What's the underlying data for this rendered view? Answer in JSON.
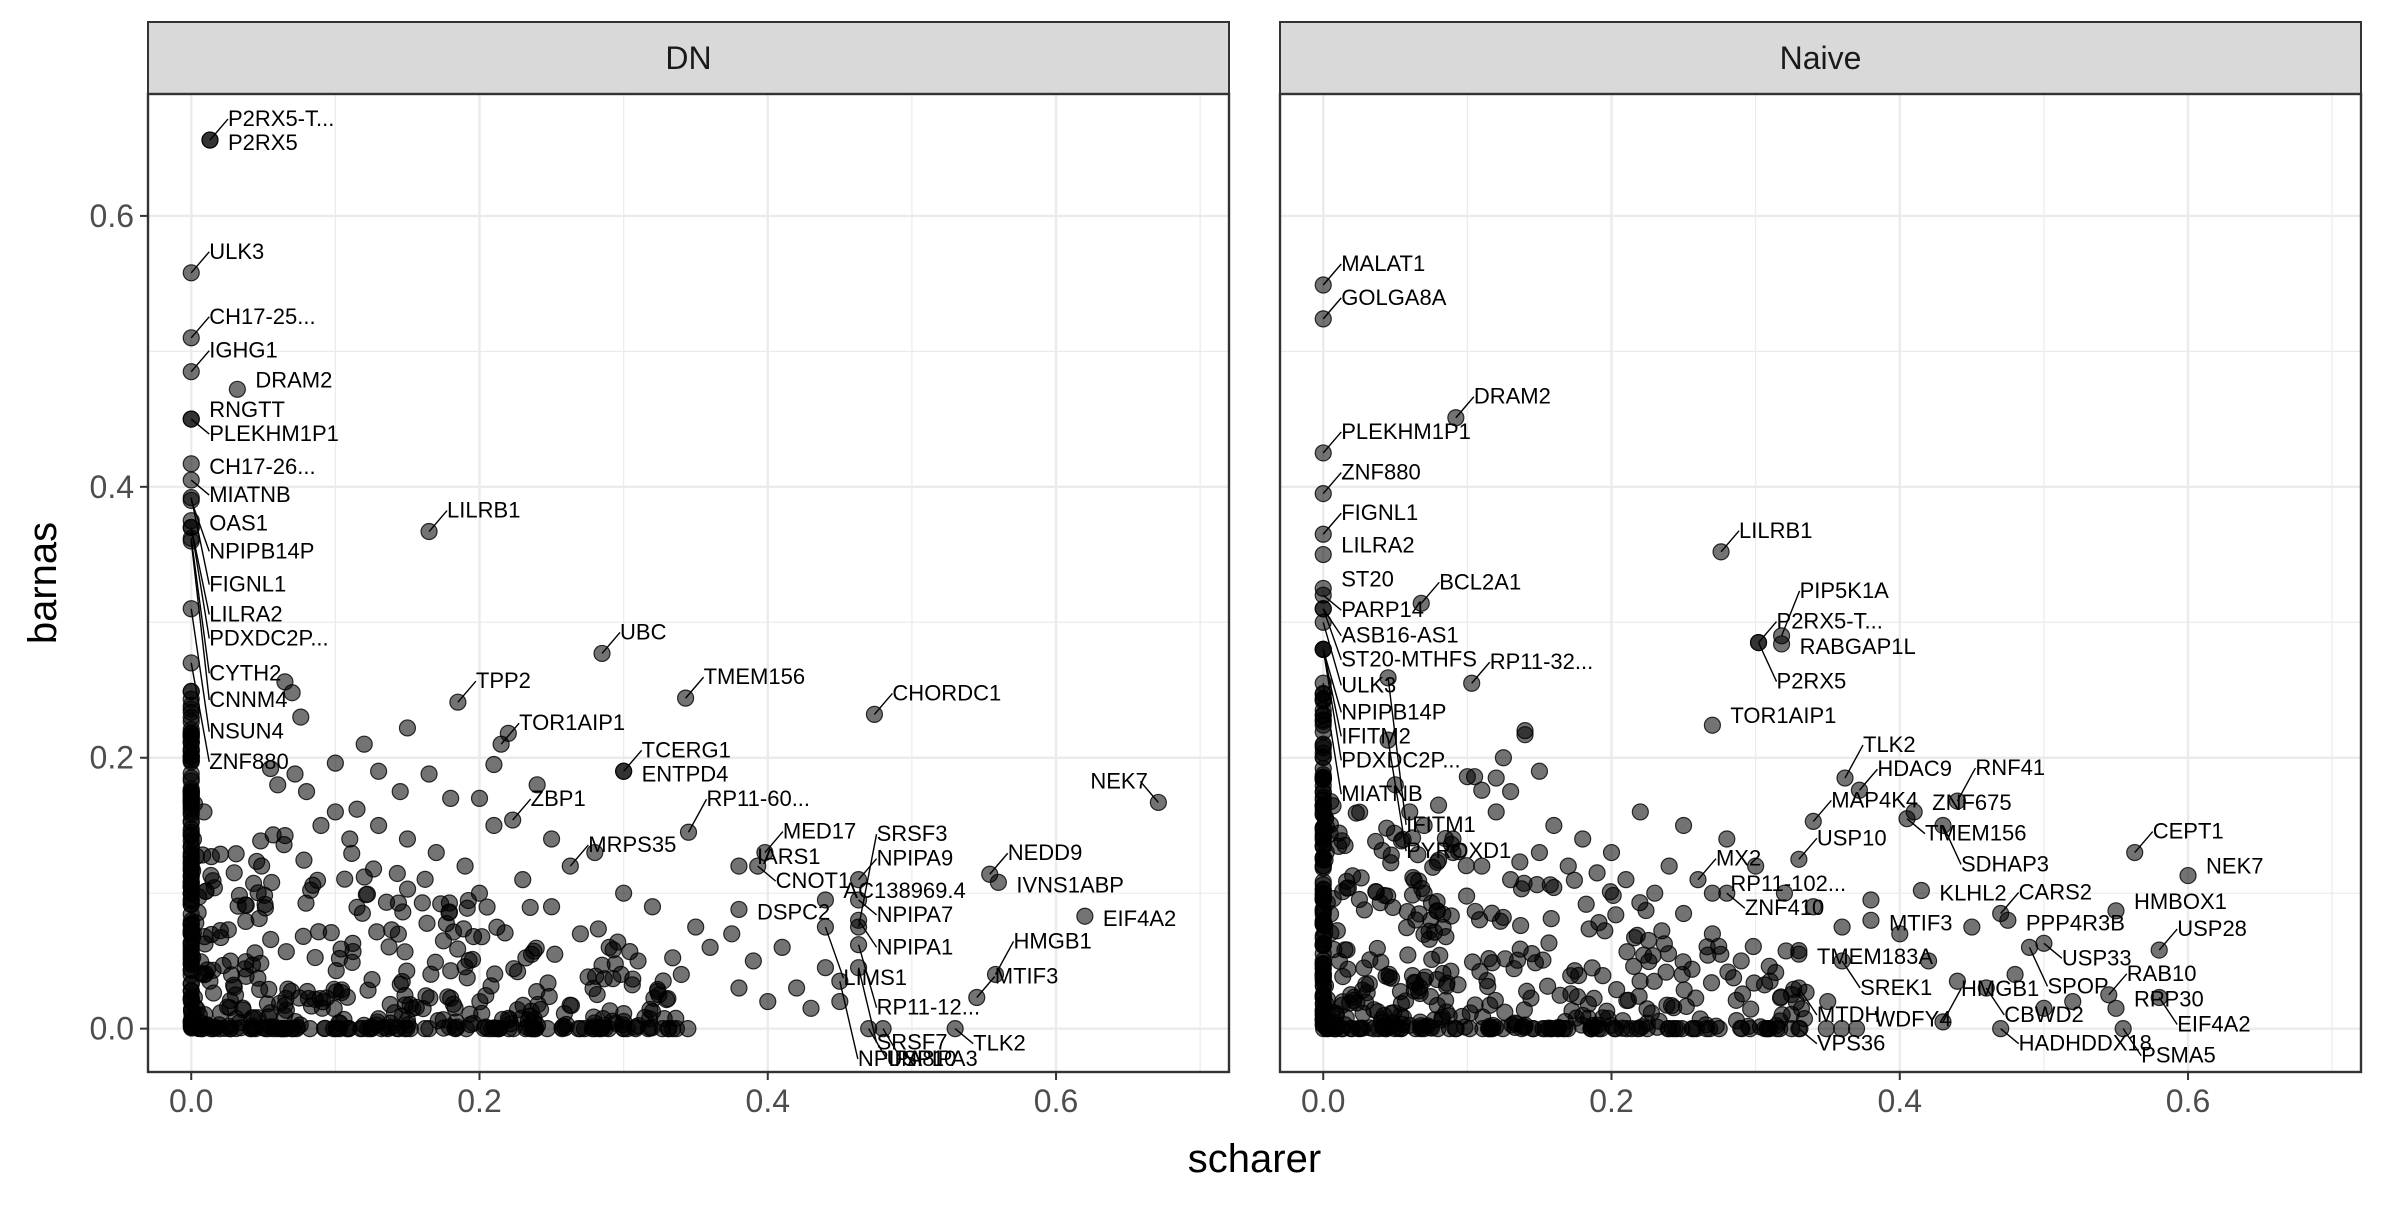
{
  "chart_data": {
    "type": "scatter",
    "xlabel": "scharer",
    "ylabel": "barnas",
    "xlim": [
      -0.03,
      0.72
    ],
    "ylim": [
      -0.032,
      0.69
    ],
    "x_ticks": [
      0.0,
      0.2,
      0.4,
      0.6
    ],
    "x_tick_labels": [
      "0.0",
      "0.2",
      "0.4",
      "0.6"
    ],
    "y_ticks": [
      0.0,
      0.2,
      0.4,
      0.6
    ],
    "y_tick_labels": [
      "0.0",
      "0.2",
      "0.4",
      "0.6"
    ],
    "grid": true,
    "point_color": "#000000",
    "point_opacity": 0.55,
    "panel_strip_color": "#d9d9d9",
    "panel_border_color": "#333333",
    "grid_color": "#ebebeb",
    "panels": [
      {
        "strip": "DN",
        "labeled_points": [
          {
            "label": "P2RX5-T...",
            "x": 0.013,
            "y": 0.656
          },
          {
            "label": "P2RX5",
            "x": 0.013,
            "y": 0.656
          },
          {
            "label": "ULK3",
            "x": 0.0,
            "y": 0.558
          },
          {
            "label": "CH17-25...",
            "x": 0.0,
            "y": 0.51
          },
          {
            "label": "IGHG1",
            "x": 0.0,
            "y": 0.485
          },
          {
            "label": "DRAM2",
            "x": 0.032,
            "y": 0.472
          },
          {
            "label": "RNGTT",
            "x": 0.0,
            "y": 0.45
          },
          {
            "label": "PLEKHM1P1",
            "x": 0.0,
            "y": 0.45
          },
          {
            "label": "CH17-26...",
            "x": 0.0,
            "y": 0.417
          },
          {
            "label": "MIATNB",
            "x": 0.0,
            "y": 0.405
          },
          {
            "label": "OAS1",
            "x": 0.0,
            "y": 0.375
          },
          {
            "label": "NPIPB14P",
            "x": 0.0,
            "y": 0.39
          },
          {
            "label": "FIGNL1",
            "x": 0.0,
            "y": 0.392
          },
          {
            "label": "LILRB1",
            "x": 0.165,
            "y": 0.367
          },
          {
            "label": "LILRA2",
            "x": 0.0,
            "y": 0.37
          },
          {
            "label": "PDXDC2P...",
            "x": 0.0,
            "y": 0.37
          },
          {
            "label": "CYTH2",
            "x": 0.0,
            "y": 0.362
          },
          {
            "label": "CNNM4",
            "x": 0.0,
            "y": 0.36
          },
          {
            "label": "NSUN4",
            "x": 0.0,
            "y": 0.31
          },
          {
            "label": "ZNF880",
            "x": 0.0,
            "y": 0.27
          },
          {
            "label": "UBC",
            "x": 0.285,
            "y": 0.277
          },
          {
            "label": "TPP2",
            "x": 0.185,
            "y": 0.241
          },
          {
            "label": "TMEM156",
            "x": 0.343,
            "y": 0.244
          },
          {
            "label": "TOR1AIP1",
            "x": 0.215,
            "y": 0.21
          },
          {
            "label": "TCERG1",
            "x": 0.3,
            "y": 0.19
          },
          {
            "label": "ENTPD4",
            "x": 0.3,
            "y": 0.19
          },
          {
            "label": "CHORDC1",
            "x": 0.474,
            "y": 0.232
          },
          {
            "label": "MED17",
            "x": 0.398,
            "y": 0.13
          },
          {
            "label": "RP11-60...",
            "x": 0.345,
            "y": 0.145
          },
          {
            "label": "ZBP1",
            "x": 0.223,
            "y": 0.154
          },
          {
            "label": "NPIPA9",
            "x": 0.463,
            "y": 0.11
          },
          {
            "label": "NEDD9",
            "x": 0.554,
            "y": 0.114
          },
          {
            "label": "NEK7",
            "x": 0.671,
            "y": 0.167
          },
          {
            "label": "IARS1",
            "x": 0.38,
            "y": 0.12
          },
          {
            "label": "CNOT1",
            "x": 0.393,
            "y": 0.12
          },
          {
            "label": "MRPS35",
            "x": 0.263,
            "y": 0.12
          },
          {
            "label": "IVNS1ABP",
            "x": 0.56,
            "y": 0.108
          },
          {
            "label": "AC138969.4",
            "x": 0.44,
            "y": 0.095
          },
          {
            "label": "NPIPA7",
            "x": 0.463,
            "y": 0.095
          },
          {
            "label": "DSPC2",
            "x": 0.38,
            "y": 0.088
          },
          {
            "label": "NPIPA1",
            "x": 0.463,
            "y": 0.08
          },
          {
            "label": "EIF4A2",
            "x": 0.62,
            "y": 0.083
          },
          {
            "label": "LIMS1",
            "x": 0.44,
            "y": 0.075
          },
          {
            "label": "SRSF3",
            "x": 0.463,
            "y": 0.075
          },
          {
            "label": "MTIF3",
            "x": 0.545,
            "y": 0.023
          },
          {
            "label": "HMGB1",
            "x": 0.558,
            "y": 0.04
          },
          {
            "label": "RP11-12...",
            "x": 0.463,
            "y": 0.062
          },
          {
            "label": "SRSF7",
            "x": 0.463,
            "y": 0.045
          },
          {
            "label": "NPIPA8",
            "x": 0.45,
            "y": 0.035
          },
          {
            "label": "TLK2",
            "x": 0.53,
            "y": 0.0
          },
          {
            "label": "USP10",
            "x": 0.47,
            "y": 0.0
          },
          {
            "label": "NPIPA3",
            "x": 0.48,
            "y": 0.0
          }
        ],
        "other_points": [
          [
            0.055,
            0.192
          ],
          [
            0.072,
            0.188
          ],
          [
            0.06,
            0.18
          ],
          [
            0.08,
            0.175
          ],
          [
            0.1,
            0.16
          ],
          [
            0.115,
            0.162
          ],
          [
            0.12,
            0.21
          ],
          [
            0.13,
            0.19
          ],
          [
            0.145,
            0.175
          ],
          [
            0.165,
            0.188
          ],
          [
            0.18,
            0.17
          ],
          [
            0.2,
            0.17
          ],
          [
            0.21,
            0.15
          ],
          [
            0.24,
            0.18
          ],
          [
            0.25,
            0.14
          ],
          [
            0.28,
            0.13
          ],
          [
            0.3,
            0.1
          ],
          [
            0.32,
            0.09
          ],
          [
            0.35,
            0.075
          ],
          [
            0.36,
            0.06
          ],
          [
            0.375,
            0.07
          ],
          [
            0.39,
            0.05
          ],
          [
            0.41,
            0.06
          ],
          [
            0.42,
            0.03
          ],
          [
            0.43,
            0.015
          ],
          [
            0.44,
            0.045
          ],
          [
            0.45,
            0.02
          ],
          [
            0.4,
            0.02
          ],
          [
            0.38,
            0.03
          ],
          [
            0.34,
            0.04
          ],
          [
            0.31,
            0.05
          ],
          [
            0.29,
            0.06
          ],
          [
            0.27,
            0.07
          ],
          [
            0.25,
            0.09
          ],
          [
            0.23,
            0.11
          ],
          [
            0.19,
            0.12
          ],
          [
            0.17,
            0.13
          ],
          [
            0.15,
            0.14
          ],
          [
            0.13,
            0.15
          ],
          [
            0.11,
            0.14
          ],
          [
            0.09,
            0.15
          ],
          [
            0.065,
            0.256
          ],
          [
            0.07,
            0.248
          ],
          [
            0.076,
            0.23
          ],
          [
            0.1,
            0.196
          ],
          [
            0.15,
            0.222
          ],
          [
            0.22,
            0.218
          ],
          [
            0.21,
            0.195
          ]
        ]
      },
      {
        "strip": "Naive",
        "labeled_points": [
          {
            "label": "MALAT1",
            "x": 0.0,
            "y": 0.549
          },
          {
            "label": "GOLGA8A",
            "x": 0.0,
            "y": 0.524
          },
          {
            "label": "DRAM2",
            "x": 0.092,
            "y": 0.451
          },
          {
            "label": "PLEKHM1P1",
            "x": 0.0,
            "y": 0.425
          },
          {
            "label": "ZNF880",
            "x": 0.0,
            "y": 0.395
          },
          {
            "label": "FIGNL1",
            "x": 0.0,
            "y": 0.365
          },
          {
            "label": "LILRA2",
            "x": 0.0,
            "y": 0.35
          },
          {
            "label": "LILRB1",
            "x": 0.276,
            "y": 0.352
          },
          {
            "label": "ST20",
            "x": 0.0,
            "y": 0.325
          },
          {
            "label": "PARP14",
            "x": 0.0,
            "y": 0.32
          },
          {
            "label": "BCL2A1",
            "x": 0.068,
            "y": 0.314
          },
          {
            "label": "P2RX5-T...",
            "x": 0.302,
            "y": 0.285
          },
          {
            "label": "PIP5K1A",
            "x": 0.318,
            "y": 0.29
          },
          {
            "label": "ASB16-AS1",
            "x": 0.0,
            "y": 0.31
          },
          {
            "label": "ST20-MTHFS",
            "x": 0.0,
            "y": 0.31
          },
          {
            "label": "RABGAP1L",
            "x": 0.318,
            "y": 0.284
          },
          {
            "label": "ULK3",
            "x": 0.0,
            "y": 0.3
          },
          {
            "label": "P2RX5",
            "x": 0.302,
            "y": 0.285
          },
          {
            "label": "NPIPB14P",
            "x": 0.0,
            "y": 0.28
          },
          {
            "label": "IFITM2",
            "x": 0.0,
            "y": 0.28
          },
          {
            "label": "PDXDC2P...",
            "x": 0.0,
            "y": 0.28
          },
          {
            "label": "MIATNB",
            "x": 0.0,
            "y": 0.255
          },
          {
            "label": "IFITM1",
            "x": 0.045,
            "y": 0.259
          },
          {
            "label": "TOR1AIP1",
            "x": 0.27,
            "y": 0.224
          },
          {
            "label": "PYROXD1",
            "x": 0.045,
            "y": 0.213
          },
          {
            "label": "RP11-32...",
            "x": 0.103,
            "y": 0.255
          },
          {
            "label": "HDAC9",
            "x": 0.372,
            "y": 0.176
          },
          {
            "label": "TLK2",
            "x": 0.362,
            "y": 0.185
          },
          {
            "label": "ZNF675",
            "x": 0.41,
            "y": 0.16
          },
          {
            "label": "RNF41",
            "x": 0.44,
            "y": 0.168
          },
          {
            "label": "MAP4K4",
            "x": 0.34,
            "y": 0.153
          },
          {
            "label": "TMEM156",
            "x": 0.405,
            "y": 0.155
          },
          {
            "label": "SDHAP3",
            "x": 0.43,
            "y": 0.15
          },
          {
            "label": "CEPT1",
            "x": 0.563,
            "y": 0.13
          },
          {
            "label": "NEK7",
            "x": 0.6,
            "y": 0.113
          },
          {
            "label": "MX2",
            "x": 0.26,
            "y": 0.11
          },
          {
            "label": "USP10",
            "x": 0.33,
            "y": 0.125
          },
          {
            "label": "KLHL2",
            "x": 0.415,
            "y": 0.102
          },
          {
            "label": "CARS2",
            "x": 0.47,
            "y": 0.085
          },
          {
            "label": "RP11-102...",
            "x": 0.27,
            "y": 0.1
          },
          {
            "label": "ZNF410",
            "x": 0.28,
            "y": 0.1
          },
          {
            "label": "MTIF3",
            "x": 0.38,
            "y": 0.08
          },
          {
            "label": "PPP4R3B",
            "x": 0.475,
            "y": 0.08
          },
          {
            "label": "USP33",
            "x": 0.5,
            "y": 0.063
          },
          {
            "label": "HMBOX1",
            "x": 0.55,
            "y": 0.087
          },
          {
            "label": "USP28",
            "x": 0.58,
            "y": 0.058
          },
          {
            "label": "RAB10",
            "x": 0.545,
            "y": 0.025
          },
          {
            "label": "SPOP",
            "x": 0.49,
            "y": 0.06
          },
          {
            "label": "TMEM183A",
            "x": 0.33,
            "y": 0.055
          },
          {
            "label": "SREK1",
            "x": 0.36,
            "y": 0.05
          },
          {
            "label": "MTDH",
            "x": 0.33,
            "y": 0.03
          },
          {
            "label": "RPP30",
            "x": 0.55,
            "y": 0.015
          },
          {
            "label": "EIF4A2",
            "x": 0.58,
            "y": 0.023
          },
          {
            "label": "CBWD2",
            "x": 0.46,
            "y": 0.03
          },
          {
            "label": "VPS36",
            "x": 0.33,
            "y": 0.0
          },
          {
            "label": "WDFY4",
            "x": 0.37,
            "y": 0.0
          },
          {
            "label": "HMGB1",
            "x": 0.43,
            "y": 0.005
          },
          {
            "label": "HADHDDX18",
            "x": 0.47,
            "y": 0.0
          },
          {
            "label": "PSMA5",
            "x": 0.555,
            "y": 0.0
          }
        ],
        "other_points": [
          [
            0.05,
            0.18
          ],
          [
            0.06,
            0.16
          ],
          [
            0.07,
            0.15
          ],
          [
            0.08,
            0.165
          ],
          [
            0.09,
            0.14
          ],
          [
            0.1,
            0.186
          ],
          [
            0.11,
            0.176
          ],
          [
            0.12,
            0.16
          ],
          [
            0.125,
            0.2
          ],
          [
            0.14,
            0.22
          ],
          [
            0.15,
            0.19
          ],
          [
            0.16,
            0.15
          ],
          [
            0.18,
            0.14
          ],
          [
            0.2,
            0.13
          ],
          [
            0.22,
            0.16
          ],
          [
            0.24,
            0.12
          ],
          [
            0.25,
            0.15
          ],
          [
            0.28,
            0.14
          ],
          [
            0.3,
            0.12
          ],
          [
            0.32,
            0.1
          ],
          [
            0.34,
            0.09
          ],
          [
            0.36,
            0.075
          ],
          [
            0.38,
            0.095
          ],
          [
            0.4,
            0.07
          ],
          [
            0.42,
            0.05
          ],
          [
            0.44,
            0.035
          ],
          [
            0.45,
            0.075
          ],
          [
            0.48,
            0.04
          ],
          [
            0.5,
            0.015
          ],
          [
            0.52,
            0.02
          ],
          [
            0.35,
            0.02
          ],
          [
            0.31,
            0.035
          ],
          [
            0.29,
            0.05
          ],
          [
            0.27,
            0.07
          ],
          [
            0.25,
            0.085
          ],
          [
            0.23,
            0.1
          ],
          [
            0.21,
            0.11
          ],
          [
            0.19,
            0.115
          ],
          [
            0.17,
            0.12
          ],
          [
            0.15,
            0.13
          ],
          [
            0.13,
            0.11
          ],
          [
            0.11,
            0.12
          ],
          [
            0.09,
            0.13
          ],
          [
            0.07,
            0.1
          ],
          [
            0.105,
            0.186
          ],
          [
            0.14,
            0.217
          ],
          [
            0.12,
            0.185
          ],
          [
            0.13,
            0.175
          ]
        ]
      }
    ]
  }
}
